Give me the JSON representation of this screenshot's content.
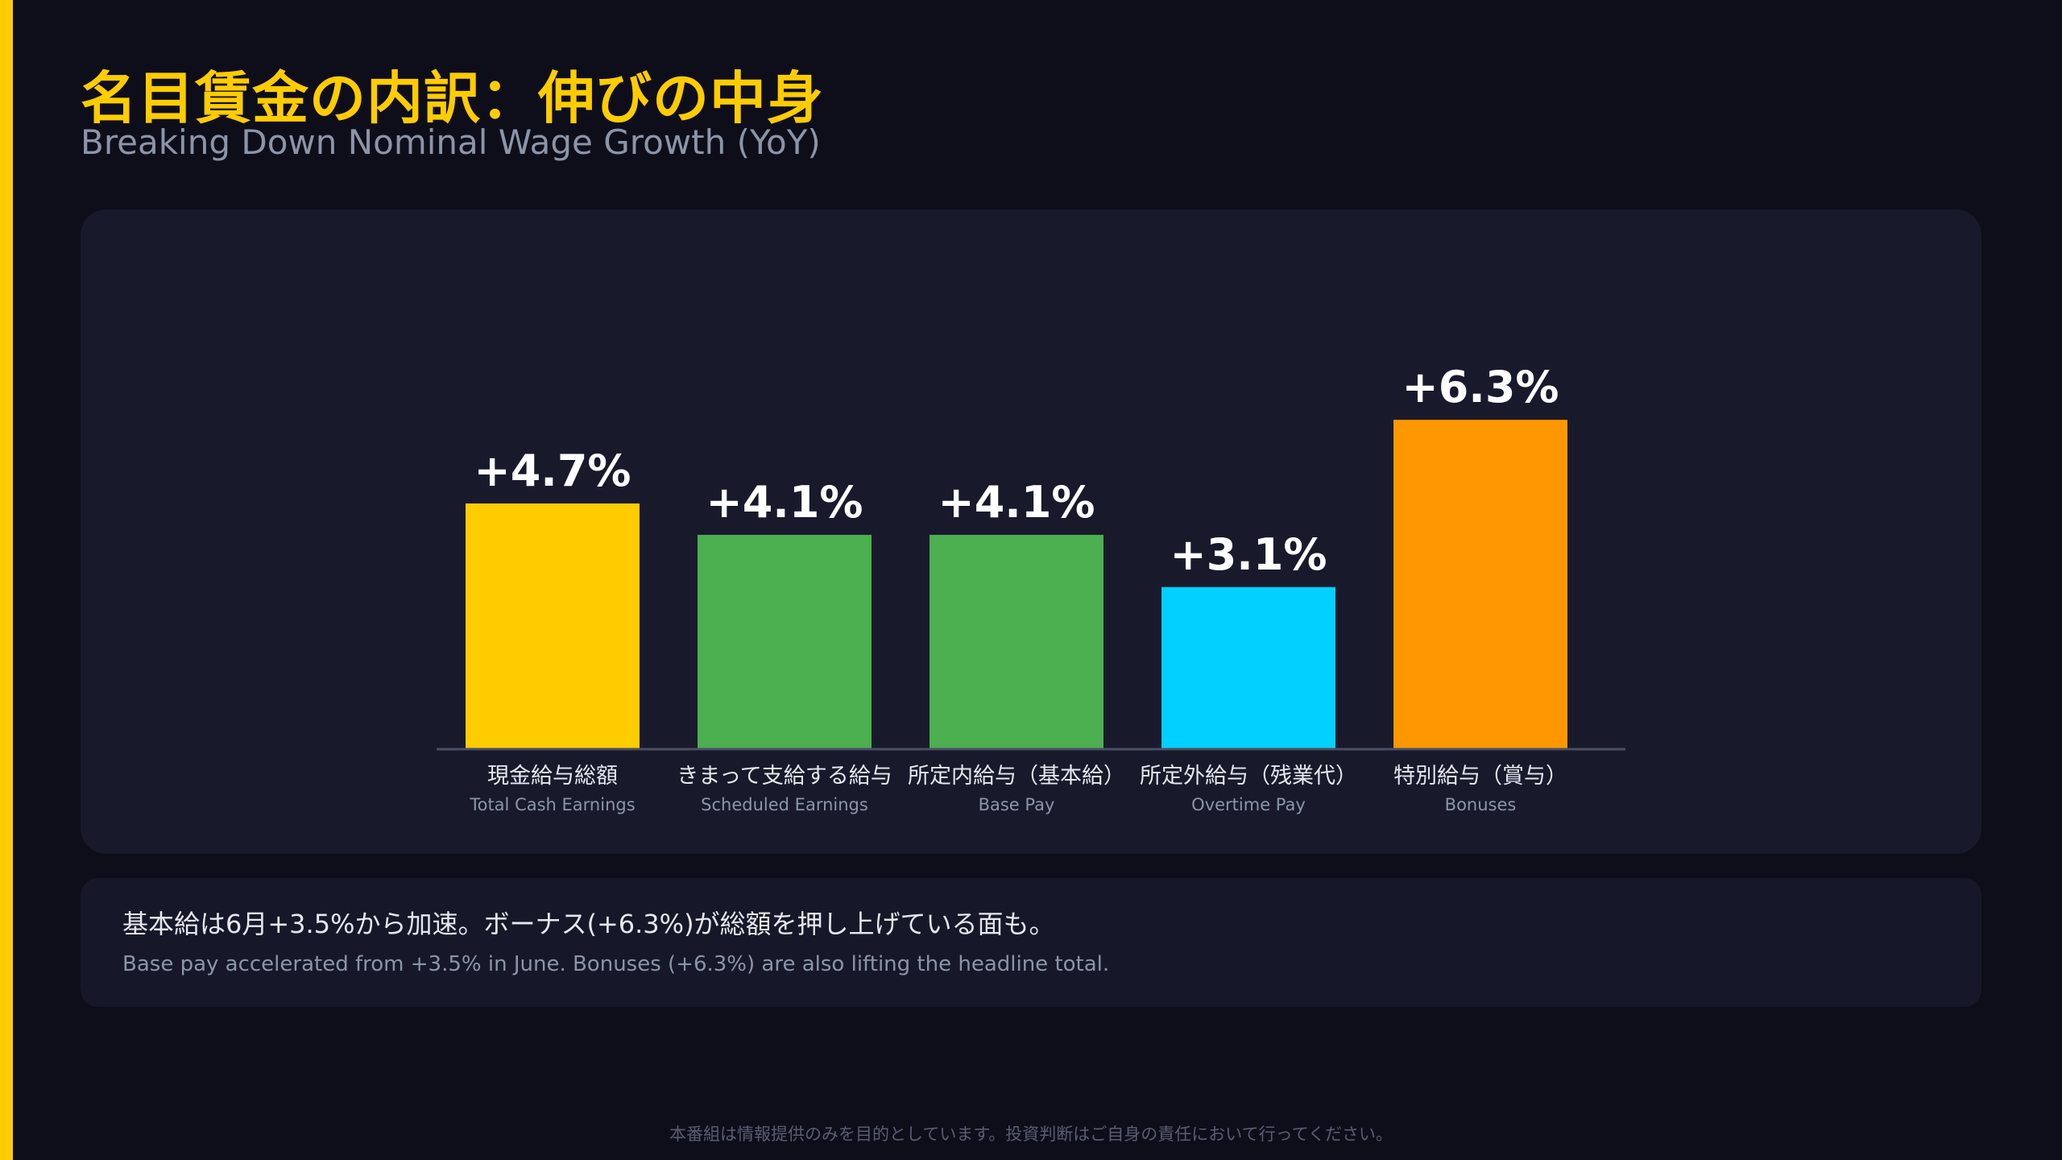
{
  "header": {
    "title": "名目賃金の内訳：伸びの中身",
    "subtitle": "Breaking Down Nominal Wage Growth (YoY)"
  },
  "chart_data": {
    "type": "bar",
    "categories": [
      "現金給与総額",
      "きまって支給する給与",
      "所定内給与（基本給）",
      "所定外給与（残業代）",
      "特別給与（賞与）"
    ],
    "categories_en": [
      "Total Cash Earnings",
      "Scheduled Earnings",
      "Base Pay",
      "Overtime Pay",
      "Bonuses"
    ],
    "values": [
      4.7,
      4.1,
      4.1,
      3.1,
      6.3
    ],
    "value_labels": [
      "+4.7%",
      "+4.1%",
      "+4.1%",
      "+3.1%",
      "+6.3%"
    ],
    "colors": [
      "#ffcc00",
      "#4caf50",
      "#4caf50",
      "#00d1ff",
      "#ff9800"
    ],
    "ylim": [
      0,
      9.4
    ],
    "grid": false,
    "xlabel": "",
    "ylabel": ""
  },
  "note": {
    "jp": "基本給は6月+3.5%から加速。ボーナス(+6.3%)が総額を押し上げている面も。",
    "en": "Base pay accelerated from +3.5% in June. Bonuses (+6.3%) are also lifting the headline total."
  },
  "footer": {
    "disclaimer": "本番組は情報提供のみを目的としています。投資判断はご自身の責任において行ってください。"
  },
  "colors": {
    "background": "#0e0e1a",
    "panel": "#181a2c",
    "accent": "#ffcc00"
  }
}
